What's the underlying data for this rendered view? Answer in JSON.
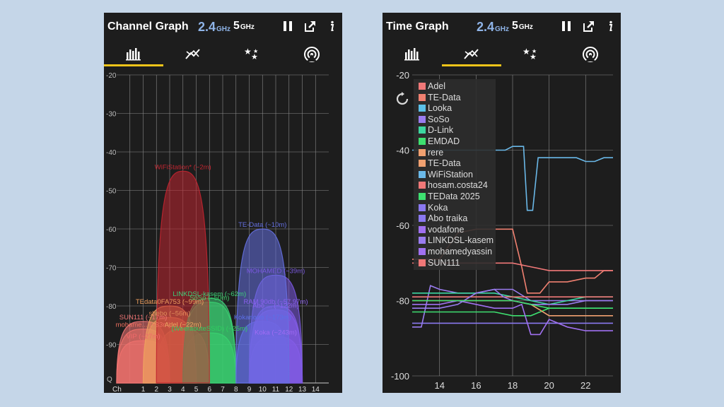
{
  "channel_screen": {
    "title": "Channel Graph",
    "band_24": "2.4",
    "band_24_unit": "GHz",
    "band_5": "5",
    "band_5_unit": "GHz",
    "toolbar_icons": [
      "pause-icon",
      "export-icon",
      "info-icon"
    ],
    "tabs": [
      {
        "icon": "bar-chart-icon",
        "selected": true
      },
      {
        "icon": "line-chart-icon",
        "selected": false
      },
      {
        "icon": "stars-icon",
        "selected": false
      },
      {
        "icon": "wifi-signal-icon",
        "selected": false
      }
    ],
    "accent_color": "#f0c419"
  },
  "time_screen": {
    "title": "Time Graph",
    "band_24": "2.4",
    "band_24_unit": "GHz",
    "band_5": "5",
    "band_5_unit": "GHz",
    "toolbar_icons": [
      "pause-icon",
      "export-icon",
      "info-icon"
    ],
    "tabs": [
      {
        "icon": "bar-chart-icon",
        "selected": false
      },
      {
        "icon": "line-chart-icon",
        "selected": true
      },
      {
        "icon": "stars-icon",
        "selected": false
      },
      {
        "icon": "wifi-signal-icon",
        "selected": false
      }
    ],
    "refresh_icon": "refresh-icon",
    "legend": [
      {
        "name": "Adel",
        "color": "#f07878"
      },
      {
        "name": "TE-Data",
        "color": "#f08070"
      },
      {
        "name": "Looka",
        "color": "#5bc0e8"
      },
      {
        "name": "SoSo",
        "color": "#9a7cf0"
      },
      {
        "name": "D-Link",
        "color": "#3dd6a0"
      },
      {
        "name": "EMDAD",
        "color": "#3ee070"
      },
      {
        "name": "rere",
        "color": "#f0a070"
      },
      {
        "name": "TE-Data",
        "color": "#f0a070"
      },
      {
        "name": "WiFiStation",
        "color": "#6ab8e8"
      },
      {
        "name": "hosam.costa24",
        "color": "#f07878"
      },
      {
        "name": "TEData 2025",
        "color": "#3ee070"
      },
      {
        "name": "Koka",
        "color": "#8a78f0"
      },
      {
        "name": "Abo traika",
        "color": "#8a78f0"
      },
      {
        "name": "vodafone",
        "color": "#a070f0"
      },
      {
        "name": "LINKDSL-kasem",
        "color": "#9a7cf0"
      },
      {
        "name": "mohamedyassin",
        "color": "#a070f0"
      },
      {
        "name": "SUN111",
        "color": "#f07878"
      }
    ]
  },
  "chart_data": [
    {
      "type": "area",
      "ylim": [
        -100,
        -20
      ],
      "xlim": [
        -1,
        15
      ],
      "y_ticks": [
        -20,
        -30,
        -40,
        -50,
        -60,
        -70,
        -80,
        -90
      ],
      "y_bottom_label": "Q",
      "x_axis_label": "Ch",
      "x_ticks": [
        1,
        2,
        3,
        4,
        5,
        6,
        7,
        8,
        9,
        10,
        11,
        12,
        13,
        14
      ],
      "series": [
        {
          "name": "VIP",
          "label": "VIP (~27m)",
          "channel": 1,
          "level": -89,
          "color": "#f06a6a"
        },
        {
          "name": "SUN111",
          "label": "SUN111 (~17m)",
          "channel": 1,
          "level": -84,
          "color": "#f07575"
        },
        {
          "name": "mohamed",
          "label": "mohame... (~33m)",
          "channel": 1,
          "level": -86,
          "color": "#f07060"
        },
        {
          "name": "TEdata0FA753",
          "label": "TEdata0FA753 (~99m)",
          "channel": 3,
          "level": -80,
          "color": "#f0a060"
        },
        {
          "name": "shebo",
          "label": "shebo (~56m)",
          "channel": 3,
          "level": -83,
          "color": "#e08a5a"
        },
        {
          "name": "Adel",
          "label": "Adel (~22m)",
          "channel": 4,
          "level": -86,
          "color": "#e8a560"
        },
        {
          "name": "WiFiStation*",
          "label": "WiFiStation* (~2m)",
          "channel": 4,
          "level": -45,
          "color": "#c02530"
        },
        {
          "name": "LINKDSL-kasem",
          "label": "LINKDSL-kasem (~62m)",
          "channel": 6,
          "level": -78,
          "color": "#3ccf78"
        },
        {
          "name": "SoSo",
          "label": "SoSo (~50m)",
          "channel": 6,
          "level": -79,
          "color": "#3ad56a"
        },
        {
          "name": "(WeeraouteSSID)",
          "label": "(WeeraouteSSID) (~25m)",
          "channel": 6,
          "level": -87,
          "color": "#2fcf60"
        },
        {
          "name": "TE-Data",
          "label": "TE-Data (~10m)",
          "channel": 10,
          "level": -60,
          "color": "#6570e0"
        },
        {
          "name": "MOHAMED",
          "label": "MOHAMED (~39m)",
          "channel": 11,
          "level": -72,
          "color": "#7a58e0"
        },
        {
          "name": "RAM",
          "label": "RAM 90db (~57.97m)",
          "channel": 11,
          "level": -80,
          "color": "#8c60f0"
        },
        {
          "name": "Abo",
          "label": "Abo ... (~122m)",
          "channel": 11,
          "level": -81,
          "color": "#8a62ee"
        },
        {
          "name": "Kokanono",
          "label": "Kokanono (~173m)",
          "channel": 10,
          "level": -84,
          "color": "#5c6fe8"
        },
        {
          "name": "Koka",
          "label": "Koka (~243m)",
          "channel": 11,
          "level": -88,
          "color": "#a06cf4"
        }
      ]
    },
    {
      "type": "line",
      "ylim": [
        -100,
        -20
      ],
      "y_ticks": [
        -20,
        -40,
        -60,
        -80,
        -100
      ],
      "xlim": [
        12.5,
        23.5
      ],
      "x_ticks": [
        14,
        16,
        18,
        20,
        22
      ],
      "series": [
        {
          "name": "WiFiStation",
          "color": "#6ab8e8",
          "x": [
            12.5,
            14,
            15,
            16,
            17,
            17.6,
            18,
            18.6,
            18.8,
            19.1,
            19.4,
            20,
            21,
            21.5,
            22,
            22.5,
            23,
            23.5
          ],
          "y": [
            -40,
            -40,
            -40,
            -40,
            -40,
            -40,
            -39,
            -39,
            -56,
            -56,
            -42,
            -42,
            -42,
            -42,
            -43,
            -43,
            -42,
            -42
          ]
        },
        {
          "name": "TE-Data",
          "color": "#f08070",
          "x": [
            12.5,
            14,
            15,
            16,
            17,
            18,
            18.5,
            18.8,
            19.5,
            20,
            21,
            22,
            22.5,
            23,
            23.5
          ],
          "y": [
            -69,
            -69,
            -62,
            -61,
            -61,
            -61,
            -71,
            -78,
            -78,
            -75,
            -75,
            -74,
            -74,
            -72,
            -72
          ]
        },
        {
          "name": "Adel",
          "color": "#f07878",
          "x": [
            12.5,
            14,
            15,
            16,
            17,
            18,
            19,
            20,
            21,
            22,
            23,
            23.5
          ],
          "y": [
            -70,
            -70,
            -70,
            -70,
            -70,
            -70,
            -71,
            -72,
            -72,
            -72,
            -72,
            -72
          ]
        },
        {
          "name": "SoSo",
          "color": "#9a7cf0",
          "x": [
            12.5,
            13,
            13.5,
            14,
            15,
            16,
            17,
            18,
            19,
            20,
            21,
            22,
            23,
            23.5
          ],
          "y": [
            -87,
            -87,
            -76,
            -77,
            -78,
            -78,
            -77,
            -77,
            -80,
            -80,
            -80,
            -80,
            -80,
            -80
          ]
        },
        {
          "name": "D-Link",
          "color": "#3dd6a0",
          "x": [
            12.5,
            14,
            15,
            16,
            17,
            18,
            19,
            20,
            21,
            22,
            23,
            23.5
          ],
          "y": [
            -78,
            -78,
            -78,
            -78,
            -78,
            -79,
            -80,
            -81,
            -80,
            -79,
            -79,
            -79
          ]
        },
        {
          "name": "EMDAD",
          "color": "#3ee070",
          "x": [
            12.5,
            14,
            15,
            16,
            17,
            18,
            19,
            20,
            21,
            22,
            23,
            23.5
          ],
          "y": [
            -83,
            -83,
            -83,
            -83,
            -83,
            -84,
            -84,
            -82,
            -82,
            -82,
            -82,
            -82
          ]
        },
        {
          "name": "rere",
          "color": "#f0a070",
          "x": [
            12.5,
            14,
            15,
            16,
            17,
            18,
            19,
            20,
            21,
            22,
            23,
            23.5
          ],
          "y": [
            -80,
            -80,
            -80,
            -80,
            -80,
            -80,
            -81,
            -84,
            -84,
            -84,
            -84,
            -84
          ]
        },
        {
          "name": "hosam.costa24",
          "color": "#f07878",
          "x": [
            12.5,
            14,
            15,
            16,
            17,
            18,
            19,
            20,
            21,
            22,
            23,
            23.5
          ],
          "y": [
            -79,
            -79,
            -79,
            -79,
            -79,
            -79,
            -79,
            -79,
            -79,
            -79,
            -79,
            -79
          ]
        },
        {
          "name": "Koka",
          "color": "#8a78f0",
          "x": [
            12.5,
            14,
            15,
            16,
            17,
            18,
            19,
            20,
            21,
            22,
            23,
            23.5
          ],
          "y": [
            -86,
            -86,
            -86,
            -86,
            -86,
            -86,
            -86,
            -86,
            -86,
            -86,
            -86,
            -86
          ]
        },
        {
          "name": "vodafone",
          "color": "#a070f0",
          "x": [
            12.5,
            14,
            15,
            16,
            17,
            18,
            18.5,
            19,
            19.5,
            20,
            21,
            22,
            23,
            23.5
          ],
          "y": [
            -81,
            -81,
            -80,
            -81,
            -82,
            -82,
            -81,
            -89,
            -89,
            -85,
            -87,
            -88,
            -88,
            -88
          ]
        },
        {
          "name": "LINKDSL-kasem",
          "color": "#9a7cf0",
          "x": [
            12.5,
            14,
            15,
            16,
            17,
            17.5,
            18,
            19,
            20,
            21,
            22,
            23,
            23.5
          ],
          "y": [
            -82,
            -82,
            -81,
            -78,
            -77,
            -79,
            -80,
            -81,
            -81,
            -81,
            -80,
            -80,
            -80
          ]
        },
        {
          "name": "TEData 2025",
          "color": "#3ee070",
          "x": [
            12.5,
            14,
            15,
            16,
            17,
            18,
            19,
            20,
            21,
            22,
            23,
            23.5
          ],
          "y": [
            -80,
            -80,
            -80,
            -80,
            -80,
            -80,
            -81,
            -82,
            -82,
            -82,
            -82,
            -82
          ]
        }
      ]
    }
  ]
}
